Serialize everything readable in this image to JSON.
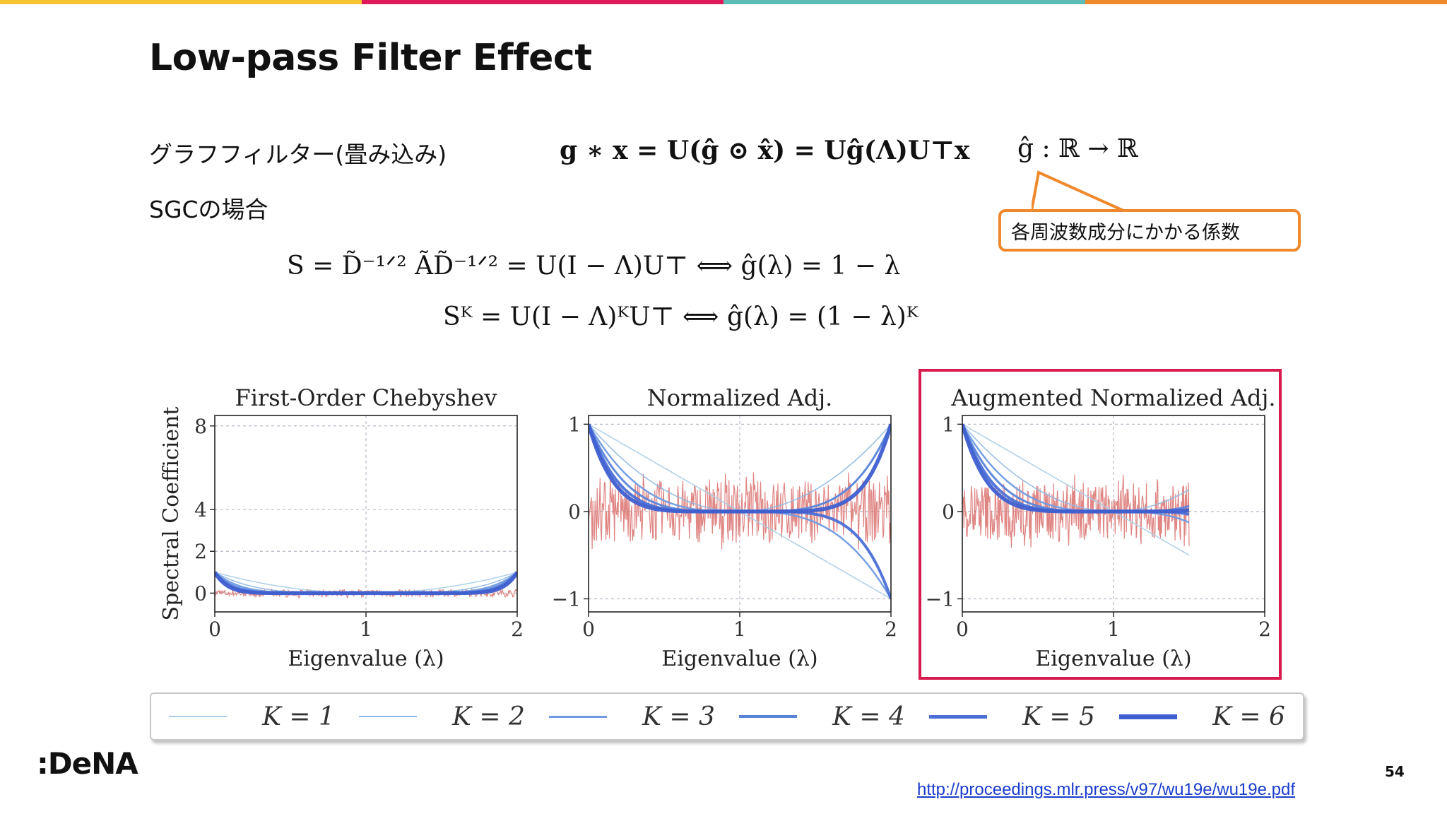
{
  "slide": {
    "title": "Low-pass Filter Effect",
    "page_number": "54",
    "logo": ":DeNA",
    "url": "http://proceedings.mlr.press/v97/wu19e/wu19e.pdf",
    "accent_colors": [
      "#f7c531",
      "#e0195a",
      "#5bbcb8",
      "#f0892c"
    ]
  },
  "content": {
    "graph_filter_label": "グラフフィルター(畳み込み)",
    "graph_filter_eq": "g ∗ x = U(ĝ ⊙ x̂) = Uĝ(Λ)U⊤x",
    "ghat_def": "ĝ : ℝ → ℝ",
    "sgc_label": "SGCの場合",
    "eq1": "S = D̃⁻¹ᐟ² ÃD̃⁻¹ᐟ² = U(I − Λ)U⊤  ⟺  ĝ(λ) = 1 − λ",
    "eq2": "Sᴷ = U(I − Λ)ᴷU⊤  ⟺  ĝ(λ) = (1 − λ)ᴷ",
    "callout": "各周波数成分にかかる係数"
  },
  "chart_data": [
    {
      "type": "line",
      "title": "First-Order Chebyshev",
      "xlabel": "Eigenvalue (λ)",
      "ylabel": "Spectral Coefficient",
      "xlim": [
        0,
        2
      ],
      "ylim": [
        -0.9,
        8.5
      ],
      "xticks": [
        "0",
        "1",
        "2"
      ],
      "yticks": [
        "0",
        "2",
        "4",
        "8"
      ],
      "ytick_values": [
        0,
        2,
        4,
        8
      ],
      "grid": true,
      "curve": "(1-λ)^(2K)",
      "noise_signal": {
        "color": "#d9716f",
        "level": 0,
        "amplitude": 0.3
      }
    },
    {
      "type": "line",
      "title": "Normalized Adj.",
      "xlabel": "Eigenvalue (λ)",
      "ylabel": "",
      "xlim": [
        0,
        2
      ],
      "ylim": [
        -1.15,
        1.1
      ],
      "xticks": [
        "0",
        "1",
        "2"
      ],
      "yticks": [
        "−1",
        "0",
        "1"
      ],
      "ytick_values": [
        -1,
        0,
        1
      ],
      "grid": true,
      "curve": "(1-λ)^K",
      "noise_signal": {
        "color": "#d9716f",
        "level": 0,
        "amplitude": 0.6
      }
    },
    {
      "type": "line",
      "title": "Augmented Normalized Adj.",
      "xlabel": "Eigenvalue (λ)",
      "ylabel": "",
      "xlim": [
        0,
        2
      ],
      "ylim": [
        -1.15,
        1.1
      ],
      "xmax_data": 1.5,
      "xticks": [
        "0",
        "1",
        "2"
      ],
      "yticks": [
        "−1",
        "0",
        "1"
      ],
      "ytick_values": [
        -1,
        0,
        1
      ],
      "grid": true,
      "curve": "(1-λ)^K",
      "highlighted": true,
      "noise_signal": {
        "color": "#d9716f",
        "level": 0,
        "amplitude": 0.55
      }
    }
  ],
  "legend": [
    {
      "label": "K = 1",
      "K": 1
    },
    {
      "label": "K = 2",
      "K": 2
    },
    {
      "label": "K = 3",
      "K": 3
    },
    {
      "label": "K = 4",
      "K": 4
    },
    {
      "label": "K = 5",
      "K": 5
    },
    {
      "label": "K = 6",
      "K": 6
    }
  ],
  "series_colors": [
    "#a9cde6",
    "#8fb8e4",
    "#6f9be0",
    "#5a84da",
    "#4a6fd6",
    "#3f5fd0"
  ]
}
